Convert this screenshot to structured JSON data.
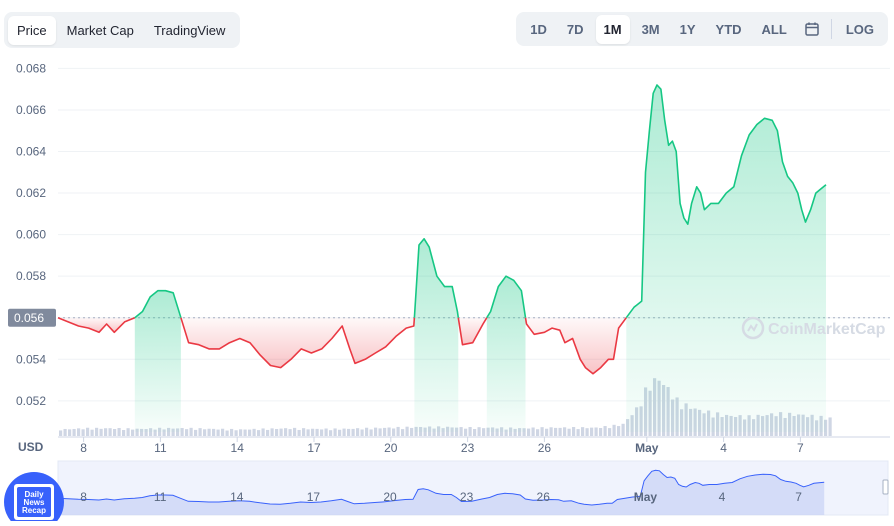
{
  "tabs_left": [
    {
      "label": "Price",
      "active": true
    },
    {
      "label": "Market Cap",
      "active": false
    },
    {
      "label": "TradingView",
      "active": false
    }
  ],
  "ranges": [
    {
      "label": "1D",
      "active": false
    },
    {
      "label": "7D",
      "active": false
    },
    {
      "label": "1M",
      "active": true
    },
    {
      "label": "3M",
      "active": false
    },
    {
      "label": "1Y",
      "active": false
    },
    {
      "label": "YTD",
      "active": false
    },
    {
      "label": "ALL",
      "active": false
    }
  ],
  "log_label": "LOG",
  "watermark": "CoinMarketCap",
  "badge_text": [
    "Daily",
    "News",
    "Recap"
  ],
  "colors": {
    "up": "#16c784",
    "down": "#ea3943",
    "volume": "#cfd6e4",
    "accent": "#3861fb"
  },
  "chart_data": {
    "type": "line",
    "currency_label": "USD",
    "baseline": 0.056,
    "baseline_label": "0.056",
    "y_ticks": [
      0.052,
      0.054,
      0.056,
      0.058,
      0.06,
      0.062,
      0.064,
      0.066,
      0.068
    ],
    "y_tick_labels": [
      "0.052",
      "0.054",
      "0.056",
      "0.058",
      "0.060",
      "0.062",
      "0.064",
      "0.066",
      "0.068"
    ],
    "ylim": [
      0.0505,
      0.0685
    ],
    "x_range": [
      0,
      32.5
    ],
    "x_ticks": [
      {
        "x": 1.0,
        "label": "8"
      },
      {
        "x": 4.0,
        "label": "11"
      },
      {
        "x": 7.0,
        "label": "14"
      },
      {
        "x": 10.0,
        "label": "17"
      },
      {
        "x": 13.0,
        "label": "20"
      },
      {
        "x": 16.0,
        "label": "23"
      },
      {
        "x": 19.0,
        "label": "26"
      },
      {
        "x": 23.0,
        "label": "May"
      },
      {
        "x": 26.0,
        "label": "4"
      },
      {
        "x": 29.0,
        "label": "7"
      }
    ],
    "price": [
      [
        0.0,
        0.056
      ],
      [
        0.4,
        0.0558
      ],
      [
        0.8,
        0.0556
      ],
      [
        1.2,
        0.0555
      ],
      [
        1.6,
        0.0553
      ],
      [
        1.9,
        0.0557
      ],
      [
        2.2,
        0.0553
      ],
      [
        2.6,
        0.0558
      ],
      [
        3.0,
        0.056
      ],
      [
        3.3,
        0.0563
      ],
      [
        3.6,
        0.057
      ],
      [
        3.9,
        0.0573
      ],
      [
        4.2,
        0.0573
      ],
      [
        4.5,
        0.0572
      ],
      [
        4.8,
        0.056
      ],
      [
        5.1,
        0.0548
      ],
      [
        5.5,
        0.0547
      ],
      [
        5.9,
        0.0545
      ],
      [
        6.3,
        0.0545
      ],
      [
        6.7,
        0.0548
      ],
      [
        7.1,
        0.055
      ],
      [
        7.5,
        0.0548
      ],
      [
        7.9,
        0.0542
      ],
      [
        8.3,
        0.0537
      ],
      [
        8.7,
        0.0536
      ],
      [
        9.1,
        0.054
      ],
      [
        9.5,
        0.0545
      ],
      [
        9.9,
        0.0543
      ],
      [
        10.3,
        0.0545
      ],
      [
        10.7,
        0.055
      ],
      [
        11.1,
        0.0556
      ],
      [
        11.4,
        0.0545
      ],
      [
        11.6,
        0.0538
      ],
      [
        12.0,
        0.054
      ],
      [
        12.4,
        0.0543
      ],
      [
        12.8,
        0.0546
      ],
      [
        13.2,
        0.0551
      ],
      [
        13.6,
        0.0555
      ],
      [
        13.9,
        0.0556
      ],
      [
        14.1,
        0.0595
      ],
      [
        14.3,
        0.0598
      ],
      [
        14.5,
        0.0594
      ],
      [
        14.8,
        0.058
      ],
      [
        15.1,
        0.0575
      ],
      [
        15.4,
        0.0575
      ],
      [
        15.6,
        0.0563
      ],
      [
        15.8,
        0.0547
      ],
      [
        16.2,
        0.0548
      ],
      [
        16.6,
        0.0557
      ],
      [
        16.9,
        0.0563
      ],
      [
        17.2,
        0.0575
      ],
      [
        17.5,
        0.058
      ],
      [
        17.8,
        0.0578
      ],
      [
        18.1,
        0.0573
      ],
      [
        18.3,
        0.0557
      ],
      [
        18.6,
        0.0552
      ],
      [
        19.0,
        0.0553
      ],
      [
        19.3,
        0.0555
      ],
      [
        19.6,
        0.0554
      ],
      [
        19.8,
        0.0548
      ],
      [
        20.1,
        0.055
      ],
      [
        20.4,
        0.054
      ],
      [
        20.6,
        0.0536
      ],
      [
        20.9,
        0.0533
      ],
      [
        21.2,
        0.0536
      ],
      [
        21.5,
        0.054
      ],
      [
        21.7,
        0.054
      ],
      [
        21.9,
        0.0555
      ],
      [
        22.2,
        0.056
      ],
      [
        22.5,
        0.0565
      ],
      [
        22.8,
        0.0568
      ],
      [
        22.95,
        0.063
      ],
      [
        23.1,
        0.065
      ],
      [
        23.25,
        0.0668
      ],
      [
        23.4,
        0.0672
      ],
      [
        23.55,
        0.067
      ],
      [
        23.7,
        0.0655
      ],
      [
        23.85,
        0.0643
      ],
      [
        24.0,
        0.0645
      ],
      [
        24.15,
        0.064
      ],
      [
        24.3,
        0.0615
      ],
      [
        24.45,
        0.0608
      ],
      [
        24.6,
        0.0605
      ],
      [
        24.75,
        0.0615
      ],
      [
        24.95,
        0.0623
      ],
      [
        25.1,
        0.062
      ],
      [
        25.25,
        0.0612
      ],
      [
        25.5,
        0.0615
      ],
      [
        25.8,
        0.0615
      ],
      [
        26.1,
        0.062
      ],
      [
        26.4,
        0.0623
      ],
      [
        26.7,
        0.0638
      ],
      [
        27.0,
        0.0648
      ],
      [
        27.3,
        0.0653
      ],
      [
        27.6,
        0.0656
      ],
      [
        27.9,
        0.0655
      ],
      [
        28.1,
        0.065
      ],
      [
        28.3,
        0.0635
      ],
      [
        28.5,
        0.0628
      ],
      [
        28.7,
        0.0625
      ],
      [
        28.9,
        0.062
      ],
      [
        29.05,
        0.0612
      ],
      [
        29.2,
        0.0606
      ],
      [
        29.4,
        0.0612
      ],
      [
        29.6,
        0.062
      ],
      [
        29.8,
        0.0622
      ],
      [
        30.0,
        0.0624
      ]
    ],
    "volume": [
      [
        0,
        0.1
      ],
      [
        1,
        0.12
      ],
      [
        2,
        0.12
      ],
      [
        3,
        0.11
      ],
      [
        4,
        0.12
      ],
      [
        5,
        0.12
      ],
      [
        6,
        0.11
      ],
      [
        7,
        0.1
      ],
      [
        8,
        0.11
      ],
      [
        9,
        0.12
      ],
      [
        10,
        0.11
      ],
      [
        11,
        0.11
      ],
      [
        12,
        0.12
      ],
      [
        13,
        0.13
      ],
      [
        14,
        0.14
      ],
      [
        15,
        0.14
      ],
      [
        16,
        0.13
      ],
      [
        17,
        0.13
      ],
      [
        18,
        0.12
      ],
      [
        19,
        0.13
      ],
      [
        20,
        0.13
      ],
      [
        21,
        0.13
      ],
      [
        22,
        0.18
      ],
      [
        22.6,
        0.45
      ],
      [
        23,
        0.8
      ],
      [
        23.4,
        0.9
      ],
      [
        23.8,
        0.72
      ],
      [
        24.2,
        0.52
      ],
      [
        25,
        0.4
      ],
      [
        26,
        0.32
      ],
      [
        27,
        0.3
      ],
      [
        28,
        0.35
      ],
      [
        29,
        0.33
      ],
      [
        30,
        0.28
      ]
    ],
    "navigator_x_ticks": [
      {
        "x": 1.0,
        "label": "8"
      },
      {
        "x": 4.0,
        "label": "11"
      },
      {
        "x": 7.0,
        "label": "14"
      },
      {
        "x": 10.0,
        "label": "17"
      },
      {
        "x": 13.0,
        "label": "20"
      },
      {
        "x": 16.0,
        "label": "23"
      },
      {
        "x": 19.0,
        "label": "26"
      },
      {
        "x": 23.0,
        "label": "May"
      },
      {
        "x": 26.0,
        "label": "4"
      },
      {
        "x": 29.0,
        "label": "7"
      }
    ]
  }
}
